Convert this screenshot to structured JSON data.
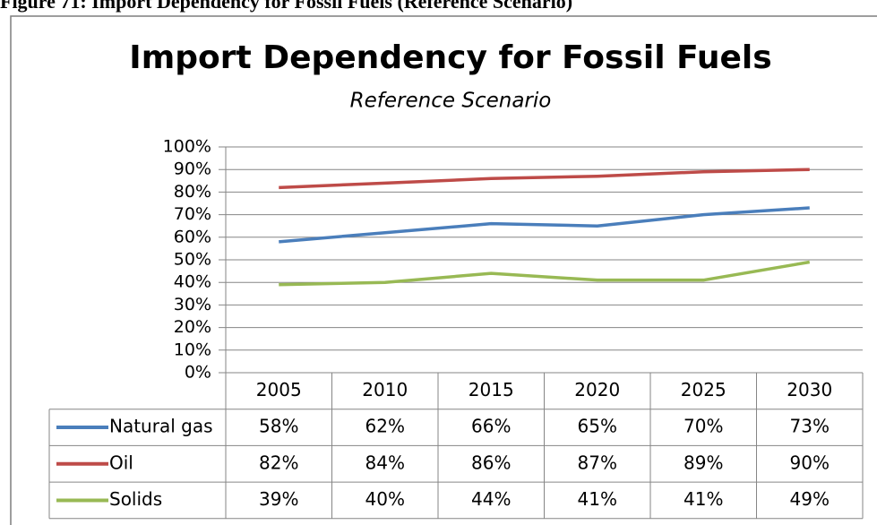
{
  "chart_data": {
    "type": "line",
    "caption": "Figure 71: Import Dependency for Fossil Fuels (Reference Scenario)",
    "title": "Import Dependency for Fossil Fuels",
    "subtitle": "Reference Scenario",
    "categories": [
      "2005",
      "2010",
      "2015",
      "2020",
      "2025",
      "2030"
    ],
    "series": [
      {
        "name": "Natural gas",
        "color": "#4a7ebb",
        "values": [
          58,
          62,
          66,
          65,
          70,
          73
        ],
        "value_labels": [
          "58%",
          "62%",
          "66%",
          "65%",
          "70%",
          "73%"
        ]
      },
      {
        "name": "Oil",
        "color": "#be4b48",
        "values": [
          82,
          84,
          86,
          87,
          89,
          90
        ],
        "value_labels": [
          "82%",
          "84%",
          "86%",
          "87%",
          "89%",
          "90%"
        ]
      },
      {
        "name": "Solids",
        "color": "#98b954",
        "values": [
          39,
          40,
          44,
          41,
          41,
          49
        ],
        "value_labels": [
          "39%",
          "40%",
          "44%",
          "41%",
          "41%",
          "49%"
        ]
      }
    ],
    "ylim": [
      0,
      100
    ],
    "yticks": [
      {
        "value": 0,
        "label": "0%"
      },
      {
        "value": 10,
        "label": "10%"
      },
      {
        "value": 20,
        "label": "20%"
      },
      {
        "value": 30,
        "label": "30%"
      },
      {
        "value": 40,
        "label": "40%"
      },
      {
        "value": 50,
        "label": "50%"
      },
      {
        "value": 60,
        "label": "60%"
      },
      {
        "value": 70,
        "label": "70%"
      },
      {
        "value": 80,
        "label": "80%"
      },
      {
        "value": 90,
        "label": "90%"
      },
      {
        "value": 100,
        "label": "100%"
      }
    ],
    "grid": true
  }
}
